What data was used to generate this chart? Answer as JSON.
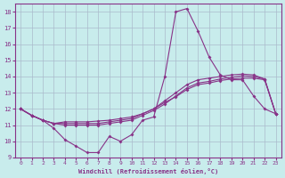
{
  "title": "",
  "xlabel": "Windchill (Refroidissement éolien,°C)",
  "ylabel": "",
  "bg_color": "#c8ecec",
  "line_color": "#883388",
  "xlim": [
    -0.5,
    23.5
  ],
  "ylim": [
    9,
    18.5
  ],
  "yticks": [
    9,
    10,
    11,
    12,
    13,
    14,
    15,
    16,
    17,
    18
  ],
  "xticks": [
    0,
    1,
    2,
    3,
    4,
    5,
    6,
    7,
    8,
    9,
    10,
    11,
    12,
    13,
    14,
    15,
    16,
    17,
    18,
    19,
    20,
    21,
    22,
    23
  ],
  "line1_x": [
    0,
    1,
    2,
    3,
    4,
    5,
    6,
    7,
    8,
    9,
    10,
    11,
    12,
    13,
    14,
    15,
    16,
    17,
    18,
    19,
    20,
    21,
    22,
    23
  ],
  "line1_y": [
    12.0,
    11.6,
    11.3,
    10.8,
    10.1,
    9.7,
    9.3,
    9.3,
    10.3,
    10.0,
    10.4,
    11.3,
    11.5,
    14.0,
    18.0,
    18.2,
    16.8,
    15.2,
    14.1,
    13.8,
    13.8,
    12.8,
    12.0,
    11.7
  ],
  "line2_x": [
    0,
    1,
    2,
    3,
    4,
    5,
    6,
    7,
    8,
    9,
    10,
    11,
    12,
    13,
    14,
    15,
    16,
    17,
    18,
    19,
    20,
    21,
    22,
    23
  ],
  "line2_y": [
    12.0,
    11.6,
    11.3,
    11.1,
    11.0,
    11.0,
    11.0,
    11.0,
    11.1,
    11.2,
    11.3,
    11.6,
    11.9,
    12.3,
    12.8,
    13.3,
    13.6,
    13.7,
    13.85,
    13.95,
    14.05,
    14.0,
    13.85,
    11.7
  ],
  "line3_x": [
    0,
    1,
    2,
    3,
    4,
    5,
    6,
    7,
    8,
    9,
    10,
    11,
    12,
    13,
    14,
    15,
    16,
    17,
    18,
    19,
    20,
    21,
    22,
    23
  ],
  "line3_y": [
    12.0,
    11.6,
    11.3,
    11.1,
    11.1,
    11.1,
    11.1,
    11.1,
    11.2,
    11.3,
    11.4,
    11.7,
    12.0,
    12.5,
    13.0,
    13.5,
    13.8,
    13.9,
    14.0,
    14.1,
    14.15,
    14.1,
    13.85,
    11.7
  ],
  "line4_x": [
    0,
    1,
    2,
    3,
    4,
    5,
    6,
    7,
    8,
    9,
    10,
    11,
    12,
    13,
    14,
    15,
    16,
    17,
    18,
    19,
    20,
    21,
    22,
    23
  ],
  "line4_y": [
    12.0,
    11.6,
    11.3,
    11.1,
    11.2,
    11.2,
    11.2,
    11.25,
    11.3,
    11.4,
    11.5,
    11.7,
    12.0,
    12.4,
    12.75,
    13.2,
    13.5,
    13.6,
    13.75,
    13.85,
    13.9,
    13.9,
    13.8,
    11.7
  ],
  "grid_color": "#aabbcc",
  "font_color": "#883388"
}
